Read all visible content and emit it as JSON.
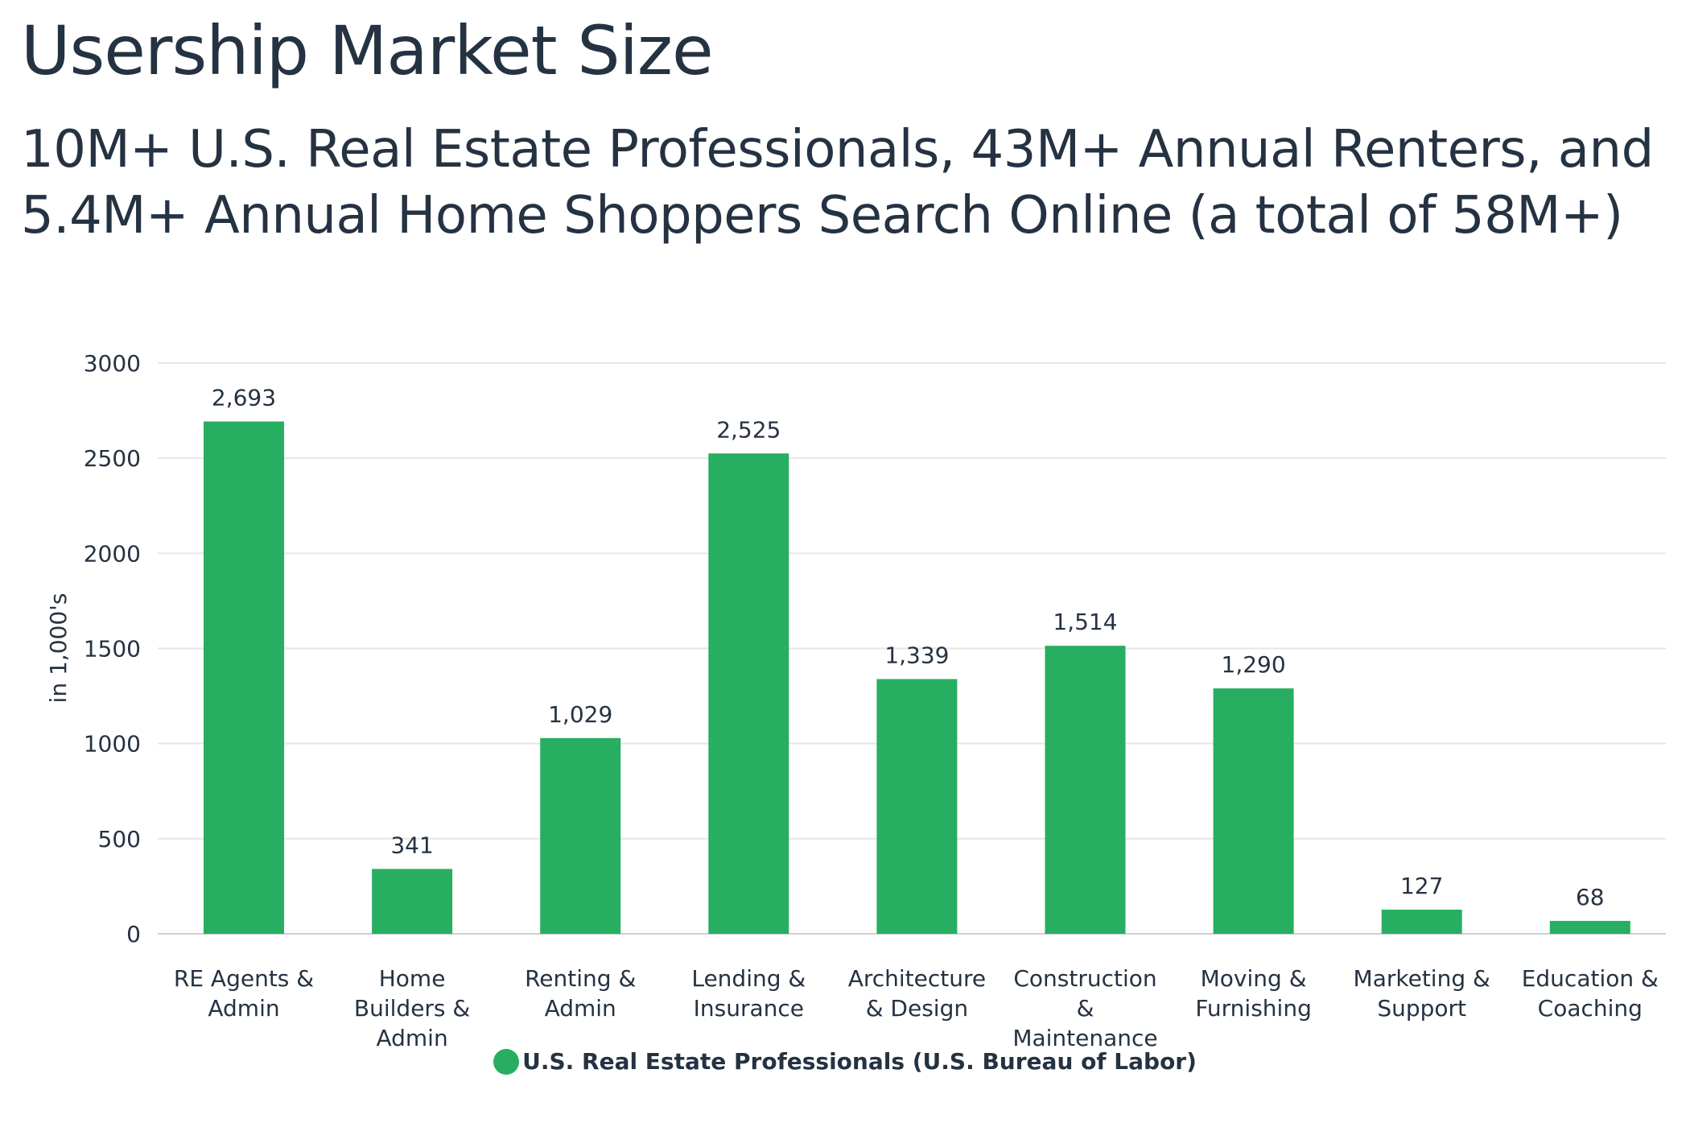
{
  "header": {
    "title": "Usership Market Size",
    "subtitle_lines": [
      "10M+ U.S. Real Estate Professionals, 43M+ Annual Renters, and",
      "5.4M+ Annual Home Shoppers Search Online (a total of 58M+)"
    ]
  },
  "chart_data": {
    "type": "bar",
    "categories": [
      "RE Agents & Admin",
      "Home Builders & Admin",
      "Renting & Admin",
      "Lending & Insurance",
      "Architecture & Design",
      "Construction & Maintenance",
      "Moving & Furnishing",
      "Marketing & Support",
      "Education & Coaching"
    ],
    "category_lines": [
      [
        "RE Agents &",
        "Admin"
      ],
      [
        "Home",
        "Builders &",
        "Admin"
      ],
      [
        "Renting &",
        "Admin"
      ],
      [
        "Lending &",
        "Insurance"
      ],
      [
        "Architecture",
        "& Design"
      ],
      [
        "Construction",
        "&",
        "Maintenance"
      ],
      [
        "Moving &",
        "Furnishing"
      ],
      [
        "Marketing &",
        "Support"
      ],
      [
        "Education &",
        "Coaching"
      ]
    ],
    "series": [
      {
        "name": "U.S. Real Estate Professionals (U.S. Bureau of Labor)",
        "values": [
          2693,
          341,
          1029,
          2525,
          1339,
          1514,
          1290,
          127,
          68
        ],
        "labels": [
          "2,693",
          "341",
          "1,029",
          "2,525",
          "1,339",
          "1,514",
          "1,290",
          "127",
          "68"
        ]
      }
    ],
    "ylabel": "in 1,000's",
    "xlabel": "",
    "ylim": [
      0,
      3000
    ],
    "yticks": [
      0,
      500,
      1000,
      1500,
      2000,
      2500,
      3000
    ],
    "grid": true,
    "legend_position": "bottom",
    "bar_color": "#28ae60",
    "grid_color": "#e6e6e6"
  },
  "legend": {
    "label": "U.S. Real Estate Professionals (U.S. Bureau of Labor)",
    "color": "#28ae60"
  }
}
